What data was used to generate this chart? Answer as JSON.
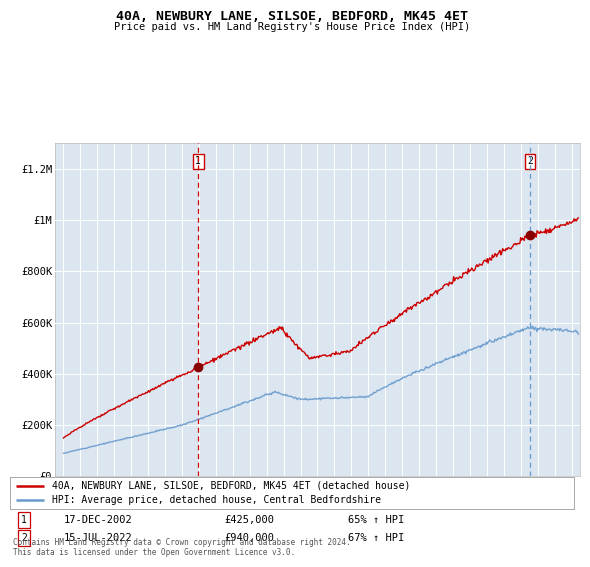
{
  "title": "40A, NEWBURY LANE, SILSOE, BEDFORD, MK45 4ET",
  "subtitle": "Price paid vs. HM Land Registry's House Price Index (HPI)",
  "line1_label": "40A, NEWBURY LANE, SILSOE, BEDFORD, MK45 4ET (detached house)",
  "line2_label": "HPI: Average price, detached house, Central Bedfordshire",
  "line1_color": "#cc0000",
  "line2_color": "#6699cc",
  "bg_color": "#dce6f1",
  "sale1_date": "17-DEC-2002",
  "sale1_price": "£425,000",
  "sale1_hpi": "65% ↑ HPI",
  "sale1_x": 2002.96,
  "sale1_y": 425000,
  "sale2_date": "15-JUL-2022",
  "sale2_price": "£940,000",
  "sale2_hpi": "67% ↑ HPI",
  "sale2_x": 2022.54,
  "sale2_y": 940000,
  "ylim": [
    0,
    1300000
  ],
  "xlim": [
    1994.5,
    2025.5
  ],
  "footer": "Contains HM Land Registry data © Crown copyright and database right 2024.\nThis data is licensed under the Open Government Licence v3.0.",
  "yticks": [
    0,
    200000,
    400000,
    600000,
    800000,
    1000000,
    1200000
  ],
  "ytick_labels": [
    "£0",
    "£200K",
    "£400K",
    "£600K",
    "£800K",
    "£1M",
    "£1.2M"
  ],
  "xticks": [
    1995,
    1996,
    1997,
    1998,
    1999,
    2000,
    2001,
    2002,
    2003,
    2004,
    2005,
    2006,
    2007,
    2008,
    2009,
    2010,
    2011,
    2012,
    2013,
    2014,
    2015,
    2016,
    2017,
    2018,
    2019,
    2020,
    2021,
    2022,
    2023,
    2024,
    2025
  ]
}
